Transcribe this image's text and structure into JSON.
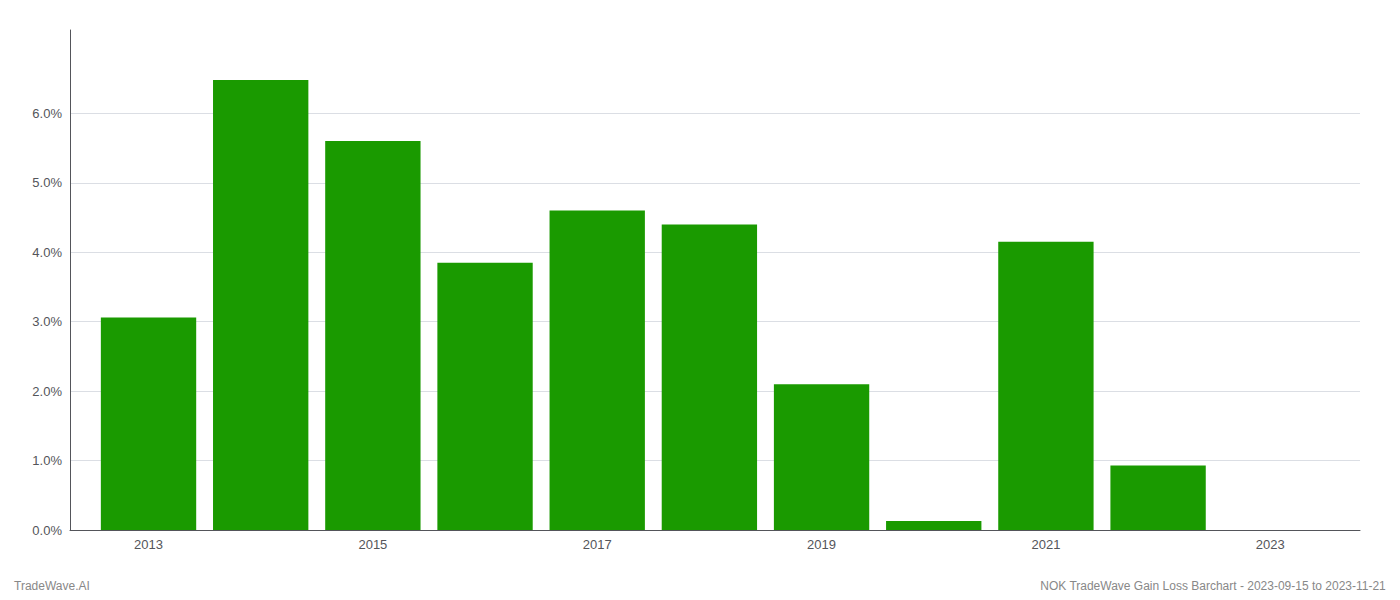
{
  "chart_data": {
    "type": "bar",
    "x": [
      2013,
      2014,
      2015,
      2016,
      2017,
      2018,
      2019,
      2020,
      2021,
      2022,
      2023
    ],
    "values": [
      0.0306,
      0.0648,
      0.056,
      0.0385,
      0.046,
      0.044,
      0.021,
      0.0013,
      0.0415,
      0.0093,
      0.0
    ],
    "color": "#1a9a00",
    "xlim": [
      2012.3,
      2023.8
    ],
    "xticks": [
      2013,
      2015,
      2017,
      2019,
      2021,
      2023
    ],
    "ylim": [
      0,
      0.072
    ],
    "yticks": [
      {
        "value": 0.0,
        "label": "0.0%"
      },
      {
        "value": 0.01,
        "label": "1.0%"
      },
      {
        "value": 0.02,
        "label": "2.0%"
      },
      {
        "value": 0.03,
        "label": "3.0%"
      },
      {
        "value": 0.04,
        "label": "4.0%"
      },
      {
        "value": 0.05,
        "label": "5.0%"
      },
      {
        "value": 0.06,
        "label": "6.0%"
      }
    ],
    "grid": true,
    "annotations": [
      "TradeWave.AI",
      "NOK TradeWave Gain Loss Barchart - 2023-09-15 to 2023-11-21"
    ]
  }
}
